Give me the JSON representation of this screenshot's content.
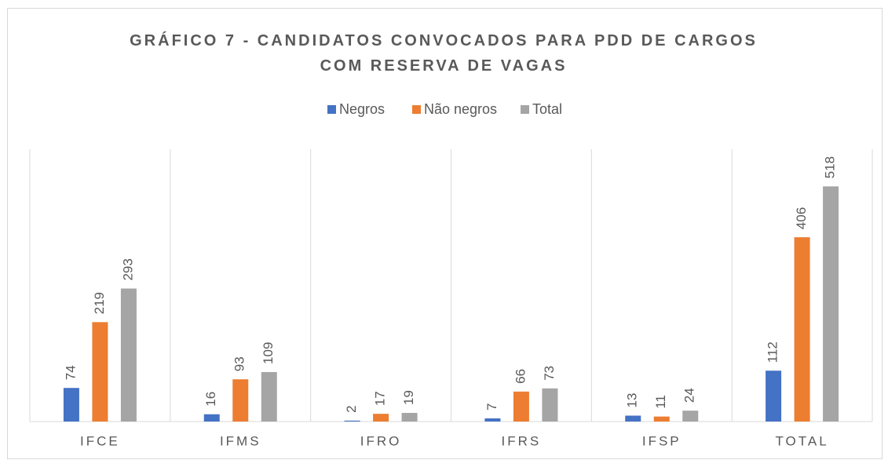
{
  "chart_data": {
    "type": "bar",
    "title": "GRÁFICO 7 - CANDIDATOS CONVOCADOS PARA PDD DE CARGOS COM RESERVA DE VAGAS",
    "categories": [
      "IFCE",
      "IFMS",
      "IFRO",
      "IFRS",
      "IFSP",
      "TOTAL"
    ],
    "series": [
      {
        "name": "Negros",
        "color": "#4472c4",
        "values": [
          74,
          16,
          2,
          7,
          13,
          112
        ]
      },
      {
        "name": "Não negros",
        "color": "#ed7d31",
        "values": [
          219,
          93,
          17,
          66,
          11,
          406
        ]
      },
      {
        "name": "Total",
        "color": "#a5a5a5",
        "values": [
          293,
          109,
          19,
          73,
          24,
          518
        ]
      }
    ],
    "ylim": [
      0,
      600
    ],
    "legend": "top"
  }
}
